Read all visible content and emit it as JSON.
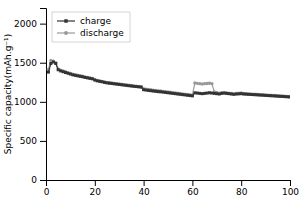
{
  "chart_data": {
    "type": "line",
    "title": "",
    "ylabel": "Specific capacity(mAh.g⁻¹)",
    "x": [
      1,
      2,
      3,
      4,
      5,
      6,
      7,
      8,
      9,
      10,
      11,
      12,
      13,
      14,
      15,
      16,
      17,
      18,
      19,
      20,
      21,
      22,
      23,
      24,
      25,
      26,
      27,
      28,
      29,
      30,
      31,
      32,
      33,
      34,
      35,
      36,
      37,
      38,
      39,
      40,
      41,
      42,
      43,
      44,
      45,
      46,
      47,
      48,
      49,
      50,
      51,
      52,
      53,
      54,
      55,
      56,
      57,
      58,
      59,
      60,
      61,
      62,
      63,
      64,
      65,
      66,
      67,
      68,
      69,
      70,
      71,
      72,
      73,
      74,
      75,
      76,
      77,
      78,
      79,
      80,
      81,
      82,
      83,
      84,
      85,
      86,
      87,
      88,
      89,
      90,
      91,
      92,
      93,
      94,
      95,
      96,
      97,
      98,
      99,
      100
    ],
    "series": [
      {
        "name": "charge",
        "color": "#333333",
        "marker": "square",
        "values": [
          1380,
          1490,
          1510,
          1490,
          1410,
          1395,
          1385,
          1375,
          1365,
          1355,
          1345,
          1338,
          1332,
          1326,
          1320,
          1312,
          1306,
          1300,
          1294,
          1278,
          1268,
          1262,
          1256,
          1248,
          1242,
          1238,
          1234,
          1230,
          1226,
          1222,
          1218,
          1214,
          1210,
          1206,
          1202,
          1198,
          1195,
          1192,
          1188,
          1155,
          1150,
          1146,
          1142,
          1138,
          1134,
          1130,
          1128,
          1124,
          1120,
          1116,
          1112,
          1108,
          1104,
          1100,
          1096,
          1092,
          1088,
          1084,
          1080,
          1076,
          1115,
          1112,
          1108,
          1104,
          1108,
          1112,
          1116,
          1112,
          1108,
          1104,
          1100,
          1108,
          1112,
          1108,
          1104,
          1100,
          1096,
          1100,
          1102,
          1104,
          1100,
          1098,
          1096,
          1094,
          1092,
          1090,
          1088,
          1086,
          1084,
          1082,
          1080,
          1078,
          1076,
          1074,
          1072,
          1070,
          1068,
          1066,
          1064,
          1062
        ]
      },
      {
        "name": "discharge",
        "color": "#999999",
        "marker": "circle",
        "values": [
          1415,
          1530,
          1520,
          1500,
          1420,
          1406,
          1396,
          1386,
          1374,
          1364,
          1354,
          1346,
          1340,
          1334,
          1328,
          1318,
          1312,
          1306,
          1300,
          1285,
          1275,
          1268,
          1262,
          1254,
          1248,
          1244,
          1240,
          1236,
          1232,
          1228,
          1224,
          1220,
          1216,
          1212,
          1208,
          1204,
          1200,
          1196,
          1194,
          1168,
          1162,
          1158,
          1154,
          1150,
          1146,
          1142,
          1138,
          1134,
          1130,
          1126,
          1122,
          1118,
          1114,
          1110,
          1106,
          1102,
          1098,
          1094,
          1090,
          1086,
          1240,
          1236,
          1232,
          1228,
          1232,
          1235,
          1238,
          1232,
          1126,
          1120,
          1110,
          1116,
          1118,
          1114,
          1110,
          1106,
          1102,
          1106,
          1110,
          1112,
          1106,
          1104,
          1102,
          1100,
          1098,
          1096,
          1094,
          1092,
          1090,
          1088,
          1086,
          1084,
          1082,
          1080,
          1078,
          1076,
          1074,
          1072,
          1070,
          1068
        ]
      }
    ],
    "xlim": [
      0,
      100
    ],
    "xticks": [
      0,
      20,
      40,
      60,
      80,
      100
    ],
    "ylim": [
      0,
      2200
    ],
    "yticks": [
      0,
      500,
      1000,
      1500,
      2000
    ],
    "legend": "upper-left"
  }
}
